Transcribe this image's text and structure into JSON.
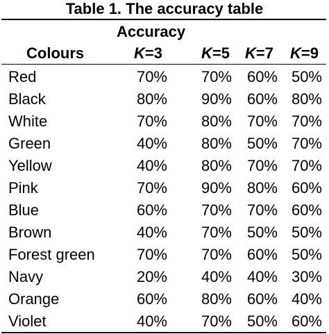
{
  "table": {
    "caption": "Table 1. The accuracy table",
    "header_group": "Accuracy",
    "header_first": "Colours",
    "k_columns": [
      {
        "letter": "K",
        "suffix": "=3"
      },
      {
        "letter": "K",
        "suffix": "=5"
      },
      {
        "letter": "K",
        "suffix": "=7"
      },
      {
        "letter": "K",
        "suffix": "=9"
      }
    ],
    "rows": [
      {
        "colour": "Red",
        "values": [
          "70%",
          "70%",
          "60%",
          "50%"
        ]
      },
      {
        "colour": "Black",
        "values": [
          "80%",
          "90%",
          "60%",
          "80%"
        ]
      },
      {
        "colour": "White",
        "values": [
          "70%",
          "80%",
          "70%",
          "70%"
        ]
      },
      {
        "colour": "Green",
        "values": [
          "40%",
          "80%",
          "50%",
          "70%"
        ]
      },
      {
        "colour": "Yellow",
        "values": [
          "40%",
          "80%",
          "70%",
          "70%"
        ]
      },
      {
        "colour": "Pink",
        "values": [
          "70%",
          "90%",
          "80%",
          "60%"
        ]
      },
      {
        "colour": "Blue",
        "values": [
          "60%",
          "70%",
          "70%",
          "60%"
        ]
      },
      {
        "colour": "Brown",
        "values": [
          "40%",
          "70%",
          "50%",
          "50%"
        ]
      },
      {
        "colour": "Forest green",
        "values": [
          "70%",
          "70%",
          "60%",
          "50%"
        ]
      },
      {
        "colour": "Navy",
        "values": [
          "20%",
          "40%",
          "40%",
          "30%"
        ]
      },
      {
        "colour": "Orange",
        "values": [
          "60%",
          "80%",
          "60%",
          "40%"
        ]
      },
      {
        "colour": "Violet",
        "values": [
          "40%",
          "70%",
          "50%",
          "60%"
        ]
      }
    ]
  }
}
